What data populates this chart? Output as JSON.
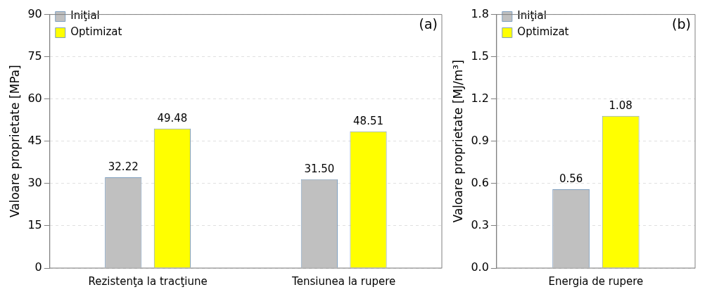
{
  "chart_data": [
    {
      "type": "bar",
      "categories": [
        "Rezistenţa la tracţiune",
        "Tensiunea la rupere"
      ],
      "ylabel": "Valoare proprietate [MPa]",
      "ylim": [
        0,
        90
      ],
      "yticks": [
        0,
        15,
        30,
        45,
        60,
        75,
        90
      ],
      "grid": "y",
      "legend": "top left",
      "annotations": [
        "(a)"
      ],
      "series": [
        {
          "name": "Iniţial",
          "color": "#c0c0c0",
          "values": [
            32.22,
            31.5
          ],
          "value_labels": [
            "32.22",
            "31.50"
          ]
        },
        {
          "name": "Optimizat",
          "color": "#ffff00",
          "values": [
            49.48,
            48.51
          ],
          "value_labels": [
            "49.48",
            "48.51"
          ]
        }
      ]
    },
    {
      "type": "bar",
      "categories": [
        "Energia de rupere"
      ],
      "ylabel": "Valoare proprietate [MJ/m³]",
      "ylim": [
        0,
        1.8
      ],
      "yticks": [
        {
          "value": 0,
          "label": "0.0"
        },
        0.3,
        0.6,
        0.9,
        1.2,
        1.5,
        1.8
      ],
      "grid": "y",
      "legend": "top left",
      "annotations": [
        "(b)"
      ],
      "series": [
        {
          "name": "Iniţial",
          "color": "#c0c0c0",
          "values": [
            0.56
          ],
          "value_labels": [
            "0.56"
          ]
        },
        {
          "name": "Optimizat",
          "color": "#ffff00",
          "values": [
            1.08
          ],
          "value_labels": [
            "1.08"
          ]
        }
      ]
    }
  ]
}
